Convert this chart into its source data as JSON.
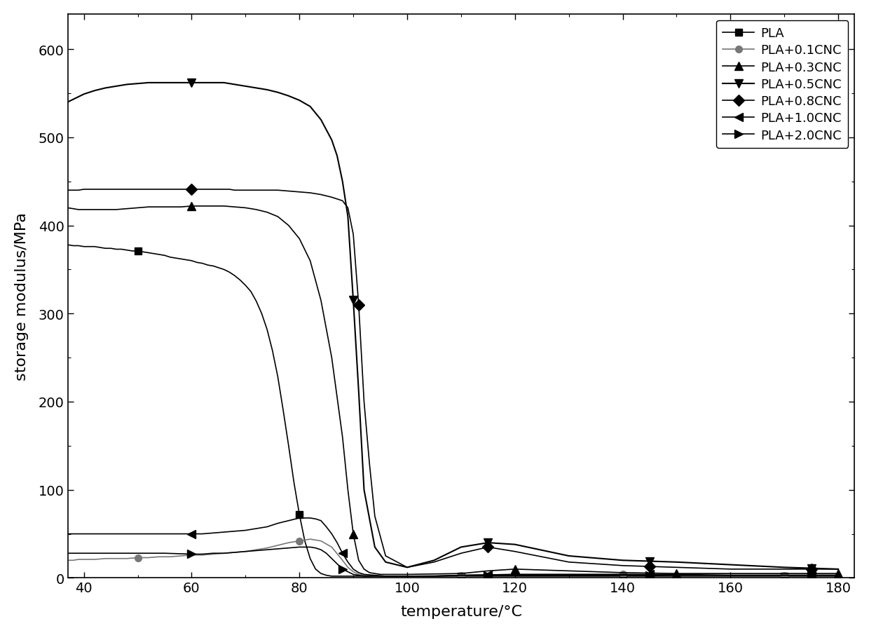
{
  "title": "",
  "xlabel": "temperature/°C",
  "ylabel": "storage modulus/MPa",
  "xlim": [
    37,
    183
  ],
  "ylim": [
    0,
    640
  ],
  "xticks": [
    40,
    60,
    80,
    100,
    120,
    140,
    160,
    180
  ],
  "yticks": [
    0,
    100,
    200,
    300,
    400,
    500,
    600
  ],
  "background_color": "#ffffff",
  "series": [
    {
      "label": "PLA",
      "marker": "s",
      "color": "#000000",
      "linewidth": 1.2,
      "markersize": 7,
      "x": [
        37,
        38,
        39,
        40,
        41,
        42,
        43,
        44,
        45,
        46,
        47,
        48,
        49,
        50,
        51,
        52,
        53,
        54,
        55,
        56,
        57,
        58,
        59,
        60,
        61,
        62,
        63,
        64,
        65,
        66,
        67,
        68,
        69,
        70,
        71,
        72,
        73,
        74,
        75,
        76,
        77,
        78,
        79,
        80,
        81,
        82,
        83,
        84,
        85,
        86,
        87,
        88,
        89,
        90,
        92,
        95,
        100,
        110,
        120,
        130,
        140,
        150,
        160,
        170,
        180
      ],
      "y": [
        378,
        377,
        377,
        376,
        376,
        376,
        375,
        374,
        374,
        373,
        373,
        372,
        371,
        371,
        370,
        369,
        368,
        367,
        366,
        364,
        363,
        362,
        361,
        360,
        358,
        357,
        355,
        354,
        352,
        350,
        347,
        343,
        338,
        332,
        325,
        314,
        300,
        282,
        258,
        228,
        190,
        150,
        108,
        72,
        42,
        22,
        10,
        5,
        3,
        2,
        2,
        2,
        2,
        2,
        2,
        2,
        2,
        2,
        2,
        2,
        2,
        2,
        2,
        2,
        2
      ]
    },
    {
      "label": "PLA+0.1CNC",
      "marker": "o",
      "color": "#777777",
      "linewidth": 1.2,
      "markersize": 7,
      "x": [
        37,
        38,
        39,
        40,
        42,
        44,
        46,
        48,
        50,
        52,
        54,
        56,
        58,
        60,
        62,
        64,
        66,
        68,
        70,
        72,
        74,
        76,
        78,
        80,
        82,
        84,
        86,
        88,
        89,
        90,
        91,
        92,
        94,
        96,
        100,
        110,
        120,
        130,
        140,
        150,
        160,
        170,
        180
      ],
      "y": [
        20,
        20,
        21,
        21,
        21,
        22,
        22,
        22,
        23,
        23,
        24,
        24,
        25,
        26,
        26,
        27,
        28,
        29,
        30,
        32,
        34,
        37,
        40,
        42,
        44,
        42,
        35,
        20,
        12,
        7,
        4,
        3,
        2,
        2,
        2,
        3,
        4,
        4,
        4,
        3,
        3,
        3,
        3
      ]
    },
    {
      "label": "PLA+0.3CNC",
      "marker": "^",
      "color": "#000000",
      "linewidth": 1.2,
      "markersize": 8,
      "x": [
        37,
        38,
        39,
        40,
        42,
        44,
        46,
        48,
        50,
        52,
        54,
        56,
        58,
        60,
        62,
        64,
        66,
        68,
        70,
        72,
        74,
        76,
        78,
        80,
        82,
        84,
        86,
        88,
        89,
        90,
        91,
        92,
        93,
        95,
        100,
        110,
        115,
        120,
        130,
        140,
        150,
        160,
        170,
        180
      ],
      "y": [
        420,
        419,
        418,
        418,
        418,
        418,
        418,
        419,
        420,
        421,
        421,
        421,
        421,
        422,
        422,
        422,
        422,
        421,
        420,
        418,
        415,
        410,
        400,
        385,
        360,
        315,
        250,
        160,
        100,
        50,
        20,
        10,
        6,
        4,
        4,
        5,
        8,
        10,
        8,
        6,
        5,
        5,
        5,
        5
      ]
    },
    {
      "label": "PLA+0.5CNC",
      "marker": "v",
      "color": "#000000",
      "linewidth": 1.5,
      "markersize": 9,
      "x": [
        37,
        38,
        39,
        40,
        42,
        44,
        46,
        48,
        50,
        52,
        54,
        56,
        58,
        60,
        62,
        63,
        64,
        65,
        66,
        67,
        68,
        70,
        72,
        74,
        76,
        78,
        80,
        82,
        84,
        86,
        87,
        88,
        89,
        90,
        91,
        92,
        94,
        96,
        100,
        105,
        110,
        115,
        120,
        130,
        140,
        150,
        160,
        170,
        180
      ],
      "y": [
        540,
        543,
        546,
        549,
        553,
        556,
        558,
        560,
        561,
        562,
        562,
        562,
        562,
        562,
        562,
        562,
        562,
        562,
        562,
        561,
        560,
        558,
        556,
        554,
        551,
        547,
        542,
        535,
        520,
        497,
        479,
        450,
        410,
        315,
        212,
        100,
        35,
        18,
        12,
        20,
        35,
        40,
        38,
        25,
        20,
        18,
        15,
        12,
        10
      ]
    },
    {
      "label": "PLA+0.8CNC",
      "marker": "D",
      "color": "#000000",
      "linewidth": 1.2,
      "markersize": 8,
      "x": [
        37,
        38,
        39,
        40,
        42,
        44,
        46,
        48,
        50,
        52,
        54,
        56,
        58,
        60,
        61,
        62,
        63,
        64,
        65,
        66,
        67,
        68,
        70,
        72,
        74,
        76,
        78,
        80,
        82,
        84,
        86,
        87,
        88,
        89,
        90,
        91,
        92,
        93,
        94,
        96,
        100,
        105,
        110,
        115,
        120,
        130,
        140,
        150,
        160,
        170,
        180
      ],
      "y": [
        440,
        440,
        440,
        441,
        441,
        441,
        441,
        441,
        441,
        441,
        441,
        441,
        441,
        441,
        441,
        441,
        441,
        441,
        441,
        441,
        441,
        440,
        440,
        440,
        440,
        440,
        439,
        438,
        437,
        435,
        432,
        430,
        428,
        420,
        390,
        310,
        200,
        130,
        70,
        25,
        12,
        18,
        28,
        35,
        30,
        18,
        14,
        12,
        10,
        10,
        10
      ]
    },
    {
      "label": "PLA+1.0CNC",
      "marker": "<",
      "color": "#000000",
      "linewidth": 1.2,
      "markersize": 8,
      "x": [
        37,
        40,
        45,
        50,
        55,
        60,
        62,
        64,
        66,
        68,
        70,
        72,
        74,
        76,
        78,
        80,
        81,
        82,
        83,
        84,
        85,
        86,
        87,
        88,
        89,
        90,
        91,
        92,
        94,
        96,
        100,
        105,
        110,
        120,
        130,
        140,
        150,
        160,
        170,
        180
      ],
      "y": [
        50,
        50,
        50,
        50,
        50,
        50,
        50,
        51,
        52,
        53,
        54,
        56,
        58,
        62,
        65,
        68,
        68,
        68,
        67,
        65,
        58,
        50,
        40,
        28,
        18,
        10,
        6,
        4,
        3,
        2,
        2,
        2,
        3,
        4,
        4,
        4,
        4,
        3,
        3,
        3
      ]
    },
    {
      "label": "PLA+2.0CNC",
      "marker": ">",
      "color": "#000000",
      "linewidth": 1.2,
      "markersize": 8,
      "x": [
        37,
        40,
        45,
        50,
        55,
        60,
        62,
        64,
        66,
        68,
        70,
        72,
        74,
        76,
        78,
        80,
        81,
        82,
        83,
        84,
        85,
        86,
        87,
        88,
        89,
        90,
        91,
        92,
        94,
        96,
        100,
        105,
        110,
        120,
        130,
        140,
        150,
        160,
        170,
        180
      ],
      "y": [
        28,
        28,
        28,
        28,
        28,
        27,
        27,
        28,
        28,
        29,
        30,
        31,
        32,
        33,
        34,
        35,
        35,
        35,
        34,
        32,
        28,
        22,
        16,
        10,
        7,
        4,
        3,
        2,
        2,
        2,
        2,
        2,
        3,
        3,
        3,
        3,
        3,
        3,
        3,
        3
      ]
    }
  ]
}
